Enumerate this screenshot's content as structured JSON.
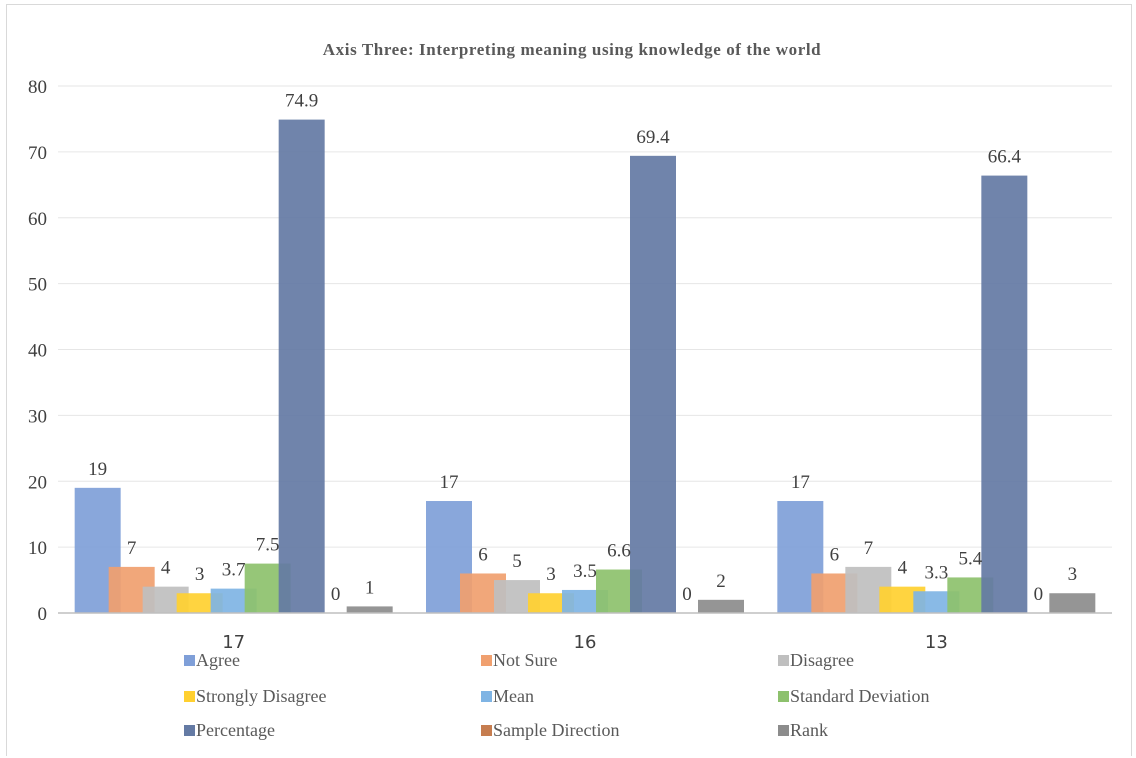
{
  "chart_data": {
    "type": "bar",
    "title": "Axis Three: Interpreting meaning using knowledge of the world",
    "xlabel": "",
    "ylabel": "",
    "categories": [
      "17",
      "16",
      "13"
    ],
    "ylim": [
      0,
      80
    ],
    "yticks": [
      "0",
      "10",
      "20",
      "30",
      "40",
      "50",
      "60",
      "70",
      "80"
    ],
    "grid": true,
    "legend_position": "bottom",
    "series": [
      {
        "name": "Agree",
        "color": "#7f9fd8",
        "values": [
          19,
          17,
          17
        ],
        "labels": [
          "19",
          "17",
          "17"
        ]
      },
      {
        "name": "Not Sure",
        "color": "#f0a06f",
        "values": [
          7,
          6,
          6
        ],
        "labels": [
          "7",
          "6",
          "6"
        ]
      },
      {
        "name": "Disagree",
        "color": "#bfbfbf",
        "values": [
          4,
          5,
          7
        ],
        "labels": [
          "4",
          "5",
          "7"
        ]
      },
      {
        "name": "Strongly Disagree",
        "color": "#ffd030",
        "values": [
          3,
          3,
          4
        ],
        "labels": [
          "3",
          "3",
          "4"
        ]
      },
      {
        "name": "Mean",
        "color": "#7fb4e4",
        "values": [
          3.7,
          3.5,
          3.3
        ],
        "labels": [
          "3.7",
          "3.5",
          "3.3"
        ]
      },
      {
        "name": "Standard Deviation",
        "color": "#8dc16d",
        "values": [
          7.5,
          6.6,
          5.4
        ],
        "labels": [
          "7.5",
          "6.6",
          "5.4"
        ]
      },
      {
        "name": "Percentage",
        "color": "#647aa4",
        "values": [
          74.9,
          69.4,
          66.4
        ],
        "labels": [
          "74.9",
          "69.4",
          "66.4"
        ]
      },
      {
        "name": "Sample Direction",
        "color": "#c67d4f",
        "values": [
          0,
          0,
          0
        ],
        "labels": [
          "0",
          "0",
          "0"
        ]
      },
      {
        "name": "Rank",
        "color": "#8c8c8c",
        "values": [
          1,
          2,
          3
        ],
        "labels": [
          "1",
          "2",
          "3"
        ]
      }
    ]
  }
}
